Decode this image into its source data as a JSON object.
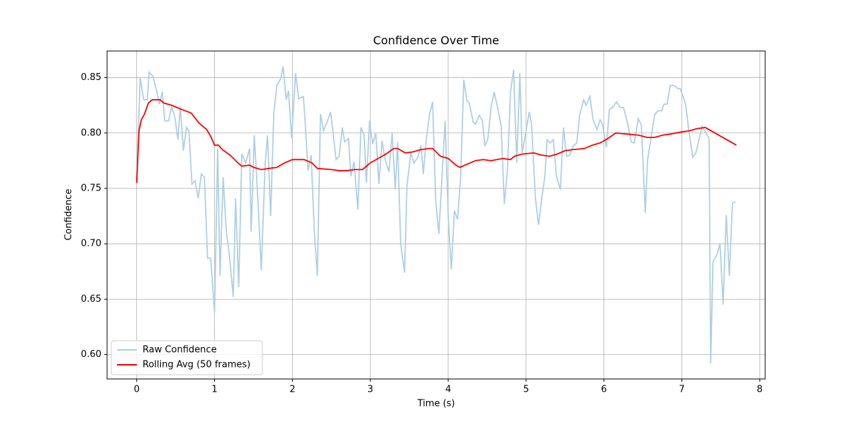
{
  "chart_data": {
    "type": "line",
    "title": "Confidence Over Time",
    "xlabel": "Time (s)",
    "ylabel": "Confidence",
    "xlim": [
      -0.38,
      8.07
    ],
    "ylim": [
      0.578,
      0.874
    ],
    "xticks": [
      0,
      1,
      2,
      3,
      4,
      5,
      6,
      7,
      8
    ],
    "yticks": [
      {
        "value": 0.6,
        "label": "0.60"
      },
      0.65,
      {
        "value": 0.7,
        "label": "0.70"
      },
      0.75,
      {
        "value": 0.8,
        "label": "0.80"
      },
      0.85
    ],
    "grid": true,
    "legend": "lower left",
    "series": [
      {
        "name": "Raw Confidence",
        "color": "#afcfe5",
        "x": [
          0,
          0.045,
          0.09,
          0.136,
          0.16,
          0.21,
          0.26,
          0.29,
          0.33,
          0.36,
          0.41,
          0.45,
          0.49,
          0.53,
          0.56,
          0.6,
          0.64,
          0.67,
          0.71,
          0.75,
          0.79,
          0.83,
          0.87,
          0.91,
          0.95,
          1.0,
          1.04,
          1.07,
          1.11,
          1.15,
          1.19,
          1.24,
          1.27,
          1.31,
          1.35,
          1.4,
          1.45,
          1.47,
          1.51,
          1.56,
          1.6,
          1.65,
          1.68,
          1.72,
          1.76,
          1.8,
          1.85,
          1.88,
          1.92,
          1.95,
          1.99,
          2.04,
          2.08,
          2.14,
          2.16,
          2.2,
          2.24,
          2.28,
          2.32,
          2.36,
          2.4,
          2.45,
          2.49,
          2.53,
          2.56,
          2.6,
          2.64,
          2.67,
          2.72,
          2.75,
          2.79,
          2.84,
          2.88,
          2.92,
          2.95,
          2.99,
          3.03,
          3.07,
          3.11,
          3.15,
          3.19,
          3.24,
          3.28,
          3.32,
          3.35,
          3.39,
          3.44,
          3.47,
          3.52,
          3.56,
          3.61,
          3.65,
          3.68,
          3.72,
          3.76,
          3.8,
          3.84,
          3.88,
          3.92,
          3.96,
          4.0,
          4.04,
          4.08,
          4.12,
          4.16,
          4.2,
          4.24,
          4.27,
          4.32,
          4.35,
          4.4,
          4.44,
          4.47,
          4.51,
          4.55,
          4.59,
          4.64,
          4.68,
          4.72,
          4.76,
          4.8,
          4.84,
          4.88,
          4.92,
          4.95,
          4.99,
          5.04,
          5.07,
          5.12,
          5.16,
          5.2,
          5.24,
          5.27,
          5.31,
          5.35,
          5.39,
          5.44,
          5.48,
          5.52,
          5.56,
          5.6,
          5.65,
          5.69,
          5.74,
          5.77,
          5.82,
          5.86,
          5.91,
          5.95,
          5.98,
          6.03,
          6.07,
          6.12,
          6.16,
          6.21,
          6.25,
          6.3,
          6.35,
          6.39,
          6.44,
          6.48,
          6.53,
          6.56,
          6.61,
          6.65,
          6.69,
          6.74,
          6.77,
          6.81,
          6.85,
          6.9,
          6.95,
          6.98,
          7.03,
          7.05,
          7.09,
          7.14,
          7.18,
          7.23,
          7.26,
          7.31,
          7.35,
          7.37,
          7.4,
          7.45,
          7.49,
          7.53,
          7.57,
          7.61,
          7.65,
          7.69
        ],
        "values": [
          0.755,
          0.85,
          0.83,
          0.83,
          0.855,
          0.851,
          0.837,
          0.826,
          0.837,
          0.811,
          0.811,
          0.824,
          0.814,
          0.794,
          0.824,
          0.784,
          0.805,
          0.802,
          0.754,
          0.757,
          0.741,
          0.763,
          0.76,
          0.687,
          0.687,
          0.638,
          0.786,
          0.671,
          0.76,
          0.712,
          0.69,
          0.652,
          0.741,
          0.661,
          0.781,
          0.773,
          0.786,
          0.711,
          0.798,
          0.735,
          0.676,
          0.773,
          0.798,
          0.725,
          0.817,
          0.843,
          0.849,
          0.86,
          0.83,
          0.838,
          0.795,
          0.854,
          0.831,
          0.833,
          0.814,
          0.766,
          0.78,
          0.712,
          0.671,
          0.817,
          0.802,
          0.811,
          0.819,
          0.795,
          0.776,
          0.779,
          0.805,
          0.792,
          0.795,
          0.761,
          0.774,
          0.731,
          0.805,
          0.798,
          0.755,
          0.811,
          0.79,
          0.8,
          0.754,
          0.793,
          0.776,
          0.765,
          0.8,
          0.749,
          0.792,
          0.7,
          0.674,
          0.752,
          0.782,
          0.773,
          0.778,
          0.789,
          0.763,
          0.795,
          0.817,
          0.828,
          0.738,
          0.709,
          0.76,
          0.811,
          0.725,
          0.677,
          0.73,
          0.722,
          0.76,
          0.848,
          0.829,
          0.827,
          0.81,
          0.808,
          0.816,
          0.811,
          0.788,
          0.795,
          0.823,
          0.837,
          0.821,
          0.806,
          0.736,
          0.766,
          0.837,
          0.857,
          0.773,
          0.854,
          0.782,
          0.798,
          0.819,
          0.808,
          0.741,
          0.717,
          0.741,
          0.76,
          0.794,
          0.791,
          0.794,
          0.761,
          0.749,
          0.805,
          0.779,
          0.78,
          0.788,
          0.791,
          0.817,
          0.83,
          0.825,
          0.833,
          0.812,
          0.803,
          0.812,
          0.808,
          0.787,
          0.821,
          0.824,
          0.828,
          0.823,
          0.823,
          0.81,
          0.792,
          0.791,
          0.813,
          0.807,
          0.728,
          0.776,
          0.798,
          0.816,
          0.82,
          0.82,
          0.826,
          0.826,
          0.843,
          0.843,
          0.84,
          0.84,
          0.83,
          0.825,
          0.802,
          0.778,
          0.782,
          0.797,
          0.806,
          0.8,
          0.795,
          0.592,
          0.684,
          0.69,
          0.7,
          0.645,
          0.726,
          0.671,
          0.737,
          0.738
        ]
      },
      {
        "name": "Rolling Avg (50 frames)",
        "color": "#ff0000",
        "x": [
          0,
          0.03,
          0.06,
          0.1,
          0.15,
          0.2,
          0.3,
          0.35,
          0.45,
          0.55,
          0.7,
          0.8,
          0.9,
          0.95,
          1.0,
          1.05,
          1.1,
          1.2,
          1.3,
          1.35,
          1.45,
          1.5,
          1.6,
          1.7,
          1.8,
          1.9,
          2.0,
          2.15,
          2.25,
          2.32,
          2.5,
          2.6,
          2.7,
          2.8,
          2.9,
          3.0,
          3.1,
          3.2,
          3.3,
          3.35,
          3.45,
          3.55,
          3.65,
          3.75,
          3.8,
          3.9,
          4.0,
          4.1,
          4.15,
          4.25,
          4.35,
          4.45,
          4.55,
          4.7,
          4.8,
          4.85,
          4.95,
          5.1,
          5.2,
          5.3,
          5.4,
          5.5,
          5.6,
          5.75,
          5.85,
          5.95,
          6.05,
          6.15,
          6.3,
          6.45,
          6.55,
          6.65,
          6.75,
          6.85,
          7.0,
          7.1,
          7.2,
          7.3,
          7.4,
          7.5,
          7.6,
          7.7
        ],
        "values": [
          0.755,
          0.802,
          0.812,
          0.817,
          0.827,
          0.83,
          0.83,
          0.827,
          0.825,
          0.822,
          0.818,
          0.809,
          0.803,
          0.797,
          0.789,
          0.789,
          0.785,
          0.78,
          0.773,
          0.77,
          0.771,
          0.769,
          0.767,
          0.768,
          0.769,
          0.773,
          0.776,
          0.776,
          0.773,
          0.768,
          0.767,
          0.766,
          0.766,
          0.767,
          0.767,
          0.773,
          0.777,
          0.781,
          0.786,
          0.786,
          0.782,
          0.783,
          0.785,
          0.786,
          0.786,
          0.779,
          0.777,
          0.771,
          0.769,
          0.772,
          0.775,
          0.776,
          0.775,
          0.777,
          0.776,
          0.779,
          0.781,
          0.782,
          0.78,
          0.779,
          0.781,
          0.784,
          0.785,
          0.786,
          0.789,
          0.791,
          0.795,
          0.8,
          0.799,
          0.798,
          0.796,
          0.796,
          0.798,
          0.799,
          0.801,
          0.802,
          0.804,
          0.805,
          0.801,
          0.797,
          0.793,
          0.789
        ]
      }
    ]
  }
}
